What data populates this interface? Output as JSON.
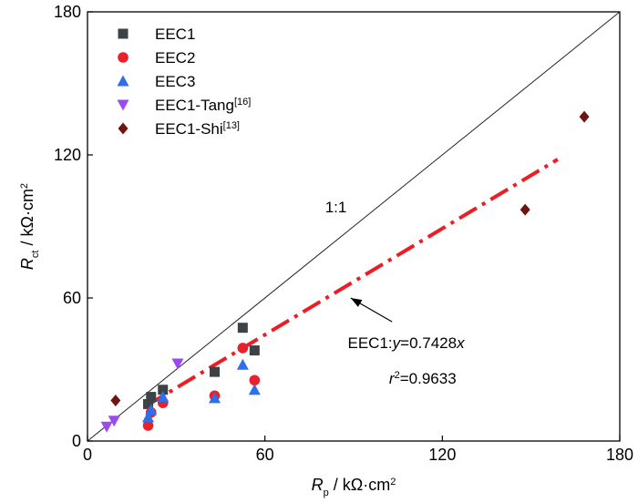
{
  "chart_data": {
    "type": "scatter",
    "xlabel": {
      "main": "R",
      "sub": "p",
      "unit": " / kΩ·cm",
      "sup": "2"
    },
    "ylabel": {
      "main": "R",
      "sub": "ct",
      "unit": " / kΩ·cm",
      "sup": "2"
    },
    "xlim": [
      0,
      180
    ],
    "ylim": [
      0,
      180
    ],
    "xticks": [
      "0",
      "60",
      "120",
      "180"
    ],
    "yticks": [
      "0",
      "60",
      "120",
      "180"
    ],
    "grid": false,
    "legend_position": "top-left",
    "series": [
      {
        "name": "EEC1",
        "name_sup": "",
        "marker": "square",
        "color": "#3c4346",
        "x": [
          20.5,
          21.5,
          25.5,
          43,
          52.5,
          56.5
        ],
        "y": [
          15.5,
          18.5,
          21.5,
          29,
          47.5,
          38
        ]
      },
      {
        "name": "EEC2",
        "name_sup": "",
        "marker": "circle",
        "color": "#e8212d",
        "x": [
          20.5,
          21.5,
          25.5,
          43,
          52.5,
          56.5
        ],
        "y": [
          6.5,
          12,
          16,
          19,
          39,
          25.5
        ]
      },
      {
        "name": "EEC3",
        "name_sup": "",
        "marker": "triangle-up",
        "color": "#2f6fe8",
        "x": [
          20.5,
          21.5,
          25.5,
          43,
          52.5,
          56.5
        ],
        "y": [
          10,
          13,
          18.5,
          18,
          32,
          21.5
        ]
      },
      {
        "name": "EEC1-Tang",
        "name_sup": "[16]",
        "marker": "triangle-down",
        "color": "#9b4af0",
        "x": [
          6.5,
          9,
          30.5
        ],
        "y": [
          6,
          8.5,
          32.5
        ]
      },
      {
        "name": "EEC1-Shi",
        "name_sup": "[13]",
        "marker": "diamond",
        "color": "#6e1512",
        "x": [
          9.5,
          148,
          168
        ],
        "y": [
          17,
          97,
          136
        ]
      }
    ],
    "reference_line": {
      "label": "1:1",
      "slope": 1,
      "x_range": [
        0,
        180
      ]
    },
    "fit_line": {
      "slope": 0.7428,
      "x_range": [
        20,
        159
      ]
    },
    "annotations": {
      "fit_equation": {
        "prefix": "EEC1:",
        "var_y": "y",
        "middle": "=0.7428",
        "var_x": "x"
      },
      "r_squared": {
        "var": "r",
        "sup": "2",
        "value": "=0.9633"
      }
    }
  }
}
